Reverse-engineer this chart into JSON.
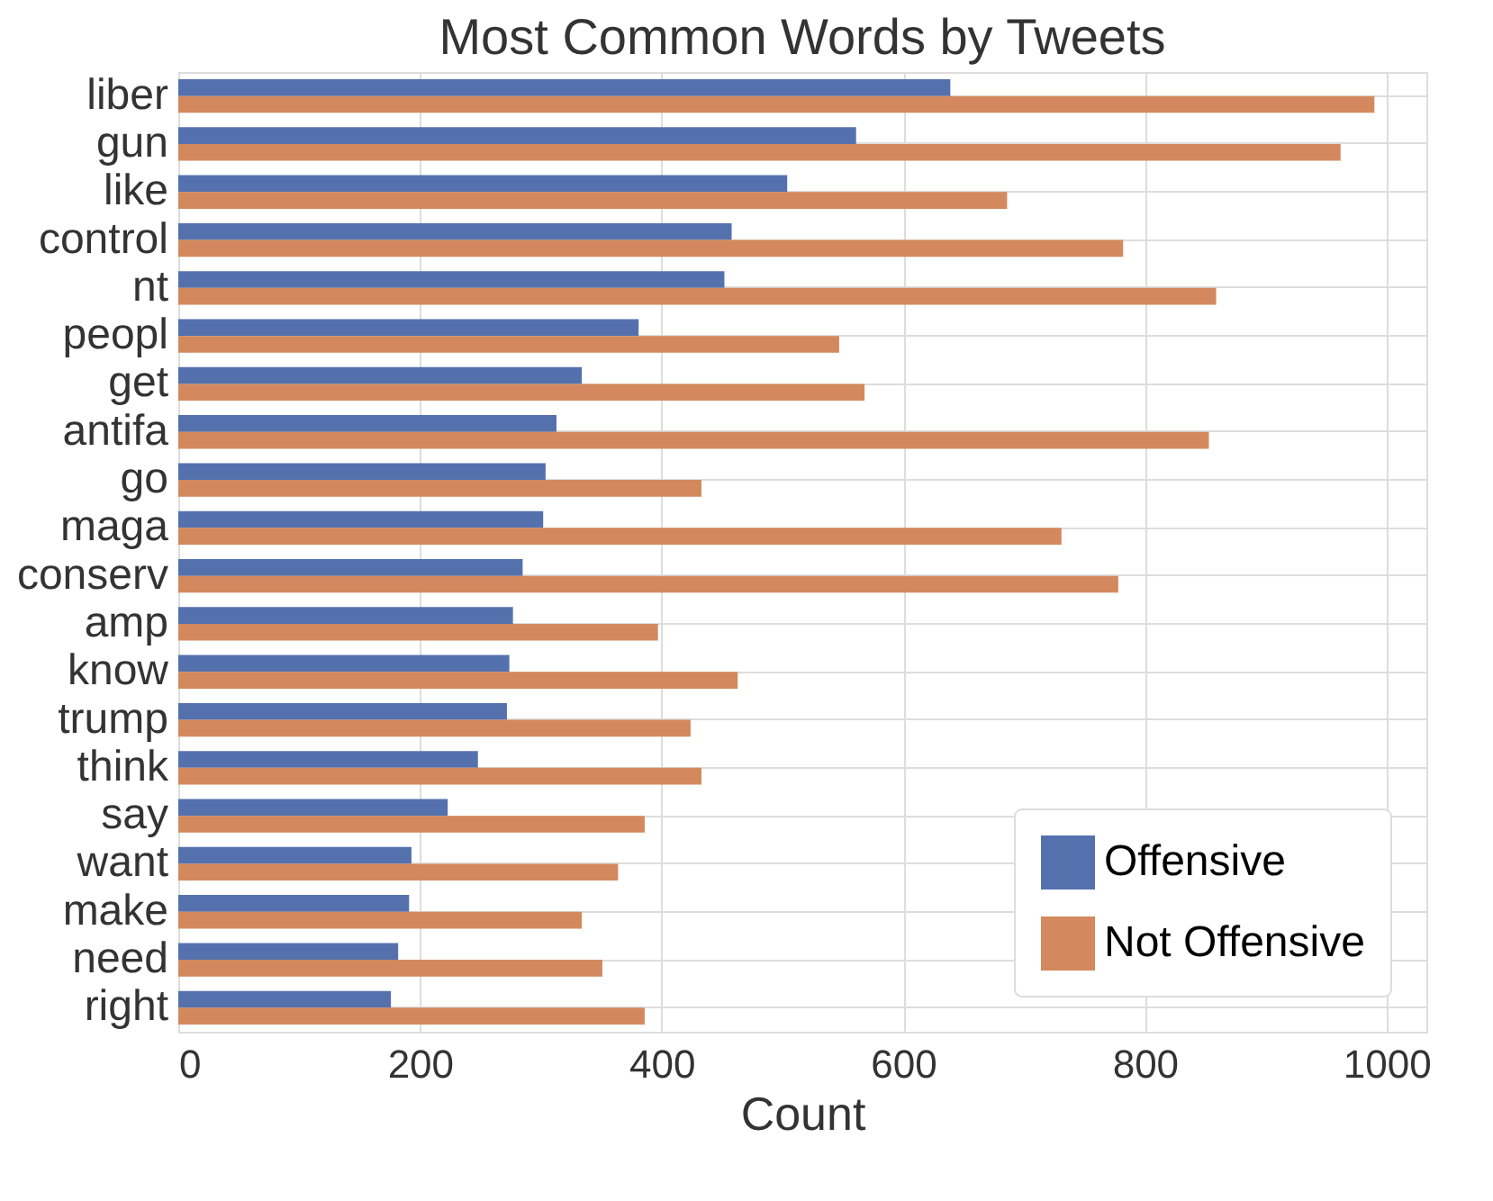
{
  "chart_data": {
    "type": "bar",
    "orientation": "horizontal",
    "title": "Most Common Words by Tweets",
    "xlabel": "Count",
    "categories": [
      "liber",
      "gun",
      "like",
      "control",
      "nt",
      "peopl",
      "get",
      "antifa",
      "go",
      "maga",
      "conserv",
      "amp",
      "know",
      "trump",
      "think",
      "say",
      "want",
      "make",
      "need",
      "right"
    ],
    "series": [
      {
        "name": "Offensive",
        "color": "#5471ae",
        "values": [
          639,
          561,
          504,
          458,
          452,
          381,
          334,
          313,
          304,
          302,
          285,
          277,
          274,
          272,
          248,
          223,
          193,
          191,
          182,
          176
        ]
      },
      {
        "name": "Not Offensive",
        "color": "#d3895d",
        "values": [
          990,
          962,
          686,
          782,
          859,
          547,
          568,
          853,
          433,
          731,
          778,
          397,
          463,
          424,
          433,
          386,
          364,
          334,
          351,
          386
        ]
      }
    ],
    "xlim": [
      0,
      1033
    ],
    "xticks": [
      0,
      200,
      400,
      600,
      800,
      1000
    ],
    "grid": true,
    "legend": "bottom right"
  }
}
